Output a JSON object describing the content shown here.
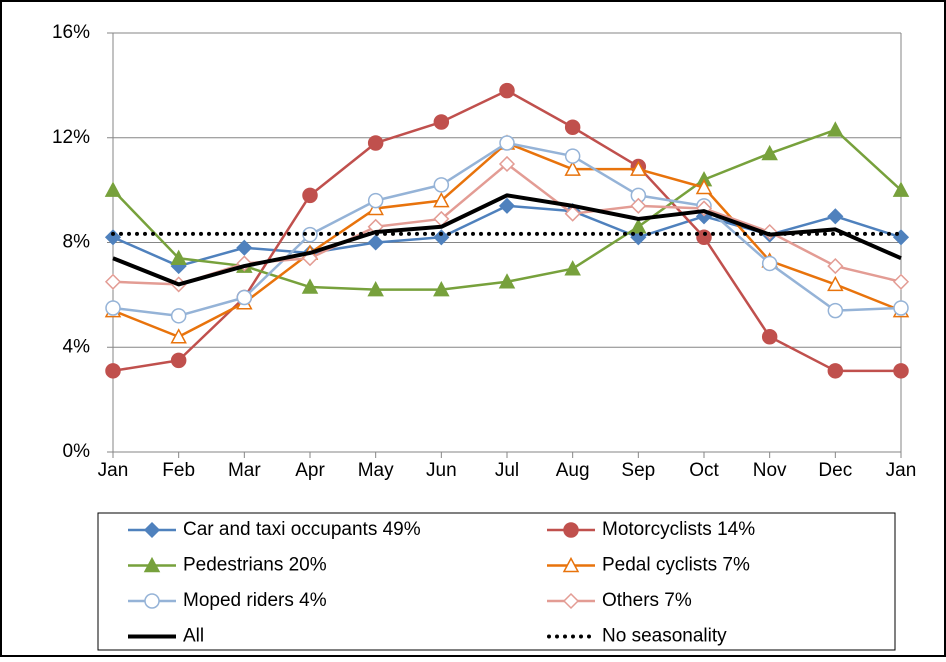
{
  "chart_data": {
    "type": "line",
    "categories": [
      "Jan",
      "Feb",
      "Mar",
      "Apr",
      "May",
      "Jun",
      "Jul",
      "Aug",
      "Sep",
      "Oct",
      "Nov",
      "Dec",
      "Jan"
    ],
    "ylim": [
      0,
      16
    ],
    "yticks": [
      {
        "value": 0,
        "label": "0%"
      },
      {
        "value": 4,
        "label": "4%"
      },
      {
        "value": 8,
        "label": "8%"
      },
      {
        "value": 12,
        "label": "12%"
      },
      {
        "value": 16,
        "label": "16%"
      }
    ],
    "grid": true,
    "legend": "bottom",
    "series": [
      {
        "name": "Car and taxi occupants 49%",
        "color": "#4f81bd",
        "marker": "diamond",
        "filled": true,
        "values": [
          8.2,
          7.1,
          7.8,
          7.6,
          8.0,
          8.2,
          9.4,
          9.2,
          8.2,
          9.0,
          8.3,
          9.0,
          8.2
        ]
      },
      {
        "name": "Motorcyclists 14%",
        "color": "#c0504d",
        "marker": "circle",
        "filled": true,
        "values": [
          3.1,
          3.5,
          5.9,
          9.8,
          11.8,
          12.6,
          13.8,
          12.4,
          10.9,
          8.2,
          4.4,
          3.1,
          3.1
        ]
      },
      {
        "name": "Pedestrians 20%",
        "color": "#77a13c",
        "marker": "triangle",
        "filled": true,
        "values": [
          10.0,
          7.4,
          7.1,
          6.3,
          6.2,
          6.2,
          6.5,
          7.0,
          8.6,
          10.4,
          11.4,
          12.3,
          10.0
        ]
      },
      {
        "name": "Pedal cyclists 7%",
        "color": "#e8730c",
        "marker": "triangle",
        "filled": false,
        "values": [
          5.4,
          4.4,
          5.7,
          7.6,
          9.3,
          9.6,
          11.8,
          10.8,
          10.8,
          10.1,
          7.3,
          6.4,
          5.4
        ]
      },
      {
        "name": "Moped riders 4%",
        "color": "#95b3d7",
        "marker": "circle",
        "filled": false,
        "values": [
          5.5,
          5.2,
          5.9,
          8.3,
          9.6,
          10.2,
          11.8,
          11.3,
          9.8,
          9.4,
          7.2,
          5.4,
          5.5
        ]
      },
      {
        "name": "Others 7%",
        "color": "#e39c94",
        "marker": "diamond",
        "filled": false,
        "values": [
          6.5,
          6.4,
          7.2,
          7.4,
          8.6,
          8.9,
          11.0,
          9.1,
          9.4,
          9.3,
          8.4,
          7.1,
          6.5
        ]
      },
      {
        "name": "All",
        "color": "#000000",
        "marker": "none",
        "filled": false,
        "values": [
          7.4,
          6.4,
          7.1,
          7.6,
          8.4,
          8.6,
          9.8,
          9.4,
          8.9,
          9.2,
          8.3,
          8.5,
          7.4
        ]
      },
      {
        "name": "No seasonality",
        "color": "#000000",
        "marker": "none",
        "filled": false,
        "dash": "dotted",
        "values": [
          8.33,
          8.33,
          8.33,
          8.33,
          8.33,
          8.33,
          8.33,
          8.33,
          8.33,
          8.33,
          8.33,
          8.33,
          8.33
        ]
      }
    ]
  }
}
